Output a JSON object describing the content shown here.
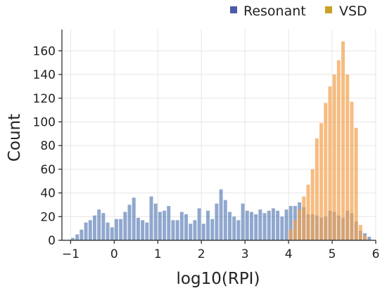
{
  "chart_data": {
    "type": "bar",
    "xlabel": "log10(RPI)",
    "ylabel": "Count",
    "xlim": [
      -1.2,
      6.0
    ],
    "ylim": [
      0,
      178
    ],
    "xticks": [
      -1,
      0,
      1,
      2,
      3,
      4,
      5,
      6
    ],
    "yticks": [
      0,
      20,
      40,
      60,
      80,
      100,
      120,
      140,
      160
    ],
    "grid": true,
    "legend_position": "top-right",
    "bin_width": 0.1,
    "series": [
      {
        "name": "Resonant",
        "color": "#4c72b0",
        "x": [
          -0.95,
          -0.85,
          -0.75,
          -0.65,
          -0.55,
          -0.45,
          -0.35,
          -0.25,
          -0.15,
          -0.05,
          0.05,
          0.15,
          0.25,
          0.35,
          0.45,
          0.55,
          0.65,
          0.75,
          0.85,
          0.95,
          1.05,
          1.15,
          1.25,
          1.35,
          1.45,
          1.55,
          1.65,
          1.75,
          1.85,
          1.95,
          2.05,
          2.15,
          2.25,
          2.35,
          2.45,
          2.55,
          2.65,
          2.75,
          2.85,
          2.95,
          3.05,
          3.15,
          3.25,
          3.35,
          3.45,
          3.55,
          3.65,
          3.75,
          3.85,
          3.95,
          4.05,
          4.15,
          4.25,
          4.35,
          4.45,
          4.55,
          4.65,
          4.75,
          4.85,
          4.95,
          5.05,
          5.15,
          5.25,
          5.35,
          5.45,
          5.55,
          5.65,
          5.75,
          5.85
        ],
        "values": [
          2,
          5,
          9,
          15,
          17,
          21,
          26,
          23,
          15,
          11,
          18,
          18,
          24,
          30,
          36,
          19,
          17,
          15,
          37,
          31,
          24,
          25,
          29,
          17,
          17,
          24,
          22,
          14,
          17,
          27,
          14,
          25,
          18,
          31,
          43,
          34,
          24,
          20,
          17,
          31,
          25,
          24,
          22,
          26,
          23,
          25,
          27,
          25,
          20,
          26,
          29,
          29,
          32,
          28,
          22,
          22,
          21,
          19,
          20,
          25,
          24,
          21,
          19,
          25,
          23,
          16,
          8,
          6,
          3
        ]
      },
      {
        "name": "VSD",
        "color": "#f2a04a",
        "x": [
          4.05,
          4.15,
          4.25,
          4.35,
          4.45,
          4.55,
          4.65,
          4.75,
          4.85,
          4.95,
          5.05,
          5.15,
          5.25,
          5.35,
          5.45,
          5.55,
          5.65,
          5.75
        ],
        "values": [
          9,
          17,
          26,
          37,
          47,
          60,
          86,
          99,
          116,
          130,
          140,
          152,
          168,
          140,
          117,
          95,
          13,
          4
        ]
      }
    ]
  },
  "legend": {
    "items": [
      {
        "label": "Resonant",
        "color": "#4c5aa8"
      },
      {
        "label": "VSD",
        "color": "#c9a227"
      }
    ]
  }
}
